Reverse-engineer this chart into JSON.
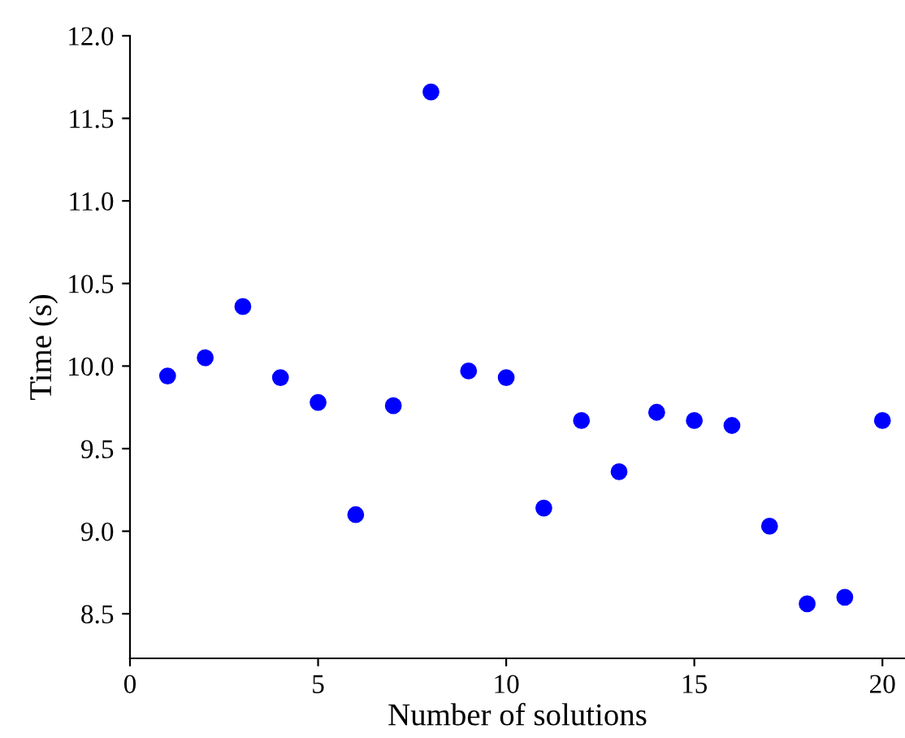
{
  "chart_data": {
    "type": "scatter",
    "xlabel": "Number of solutions",
    "ylabel": "Time (s)",
    "x": [
      1,
      2,
      3,
      4,
      5,
      6,
      7,
      8,
      9,
      10,
      11,
      12,
      13,
      14,
      15,
      16,
      17,
      18,
      19,
      20
    ],
    "series": [
      {
        "color": "#0000ff",
        "values": [
          9.94,
          10.05,
          10.36,
          9.93,
          9.78,
          9.1,
          9.76,
          11.66,
          9.97,
          9.93,
          9.14,
          9.67,
          9.36,
          9.72,
          9.67,
          9.64,
          9.03,
          8.56,
          8.6,
          9.67
        ]
      }
    ],
    "xlim": [
      0,
      20.6
    ],
    "ylim": [
      8.23,
      12.0
    ],
    "xticks": [
      0,
      5,
      10,
      15,
      20
    ],
    "yticks": [
      8.5,
      {
        "value": 9,
        "label": "9.0"
      },
      9.5,
      {
        "value": 10,
        "label": "10.0"
      },
      10.5,
      {
        "value": 11,
        "label": "11.0"
      },
      11.5,
      {
        "value": 12,
        "label": "12.0"
      }
    ],
    "marker": "circle",
    "grid": false,
    "legend": false
  }
}
